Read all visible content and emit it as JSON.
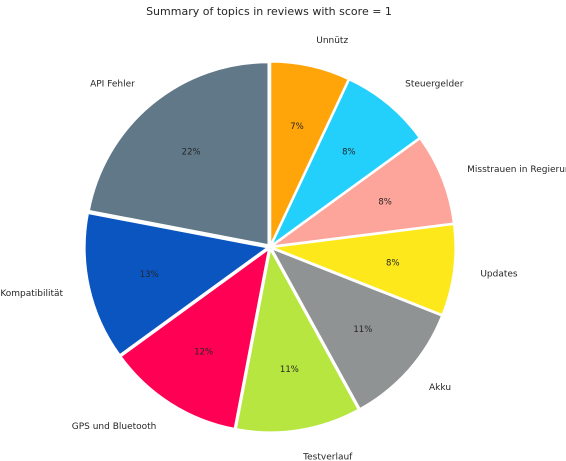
{
  "chart_data": {
    "type": "pie",
    "title": "Summary of topics in reviews with score = 1",
    "slices": [
      {
        "label": "Unnütz",
        "percent": 7,
        "pct_text": "7%",
        "color": "#ffa50a"
      },
      {
        "label": "Steuergelder",
        "percent": 8,
        "pct_text": "8%",
        "color": "#23d0fc"
      },
      {
        "label": "Misstrauen in Regierung",
        "percent": 8,
        "pct_text": "8%",
        "color": "#fda49b"
      },
      {
        "label": "Updates",
        "percent": 8,
        "pct_text": "8%",
        "color": "#fde91b"
      },
      {
        "label": "Akku",
        "percent": 11,
        "pct_text": "11%",
        "color": "#8f9394"
      },
      {
        "label": "Testverlauf",
        "percent": 11,
        "pct_text": "11%",
        "color": "#b6e63f"
      },
      {
        "label": "GPS und Bluetooth",
        "percent": 12,
        "pct_text": "12%",
        "color": "#ff0054"
      },
      {
        "label": "Kompatibilität",
        "percent": 13,
        "pct_text": "13%",
        "color": "#0b55c1"
      },
      {
        "label": "API Fehler",
        "percent": 22,
        "pct_text": "22%",
        "color": "#607888"
      }
    ],
    "start_angle": "top",
    "direction": "clockwise",
    "exploded": true
  }
}
